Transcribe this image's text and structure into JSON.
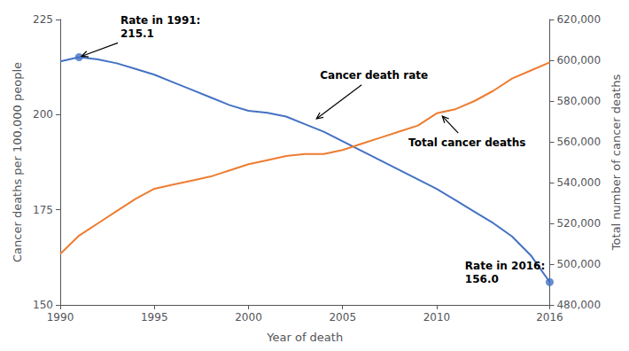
{
  "chart_data": {
    "type": "line",
    "xlabel": "Year of death",
    "ylabel": "Cancer deaths per 100,000 people",
    "y2label": "Total number of cancer deaths",
    "x": [
      1990,
      1991,
      1992,
      1993,
      1994,
      1995,
      1996,
      1997,
      1998,
      1999,
      2000,
      2001,
      2002,
      2003,
      2004,
      2005,
      2006,
      2007,
      2008,
      2009,
      2010,
      2011,
      2012,
      2013,
      2014,
      2015,
      2016
    ],
    "series": [
      {
        "type": "line",
        "color": "#4472c4",
        "values": [
          214.0,
          215.1,
          214.5,
          213.5,
          212.0,
          210.5,
          208.5,
          206.5,
          204.5,
          202.5,
          201.0,
          200.5,
          199.5,
          197.5,
          195.5,
          193.0,
          190.5,
          188.0,
          185.5,
          183.0,
          180.5,
          177.5,
          174.5,
          171.5,
          168.0,
          163.0,
          156.0
        ]
      },
      {
        "type": "line",
        "color": "#ed7d31",
        "axis": "y2",
        "values": [
          505000,
          514000,
          520000,
          526000,
          532000,
          537000,
          539000,
          541000,
          543000,
          546000,
          549000,
          551000,
          553000,
          554000,
          554000,
          556000,
          559000,
          562000,
          565000,
          568000,
          574000,
          576000,
          580000,
          585000,
          591000,
          595000,
          599000
        ]
      },
      {
        "type": "scatter",
        "marker": "circle",
        "color": "#4472c4",
        "x": [
          1991,
          2016
        ],
        "values": [
          215.1,
          156.0
        ]
      }
    ],
    "xlim": [
      1990,
      2016
    ],
    "xticks": [
      1990,
      1995,
      2000,
      2005,
      2010,
      2016
    ],
    "ylim": [
      150,
      225
    ],
    "yticks": [
      150,
      175,
      200,
      225
    ],
    "y2lim": [
      480000,
      620000
    ],
    "y2ticks": [
      {
        "value": 480000,
        "label": "480,000"
      },
      {
        "value": 500000,
        "label": "500,000"
      },
      {
        "value": 520000,
        "label": "520,000"
      },
      {
        "value": 540000,
        "label": "540,000"
      },
      {
        "value": 560000,
        "label": "560,000"
      },
      {
        "value": 580000,
        "label": "580,000"
      },
      {
        "value": 600000,
        "label": "600,000"
      },
      {
        "value": 620000,
        "label": "620,000"
      }
    ],
    "grid": false,
    "annotations": [
      {
        "text": "Rate in 1991:\n215.1",
        "xy": [
          1991,
          215.1
        ],
        "xytext": [
          1993.2,
          219.5
        ]
      },
      {
        "text": "Cancer death rate",
        "xy": [
          2003.5,
          198.5
        ],
        "xytext": [
          2003.8,
          208.5
        ]
      },
      {
        "text": "Total cancer deaths",
        "axis": "y2",
        "xy": [
          2010.2,
          573500
        ],
        "xytext": [
          2008.5,
          563000
        ]
      },
      {
        "text": "Rate in 2016:\n156.0",
        "xy": [
          2016,
          156.0
        ],
        "xytext": [
          2011.5,
          158.5
        ]
      }
    ]
  }
}
